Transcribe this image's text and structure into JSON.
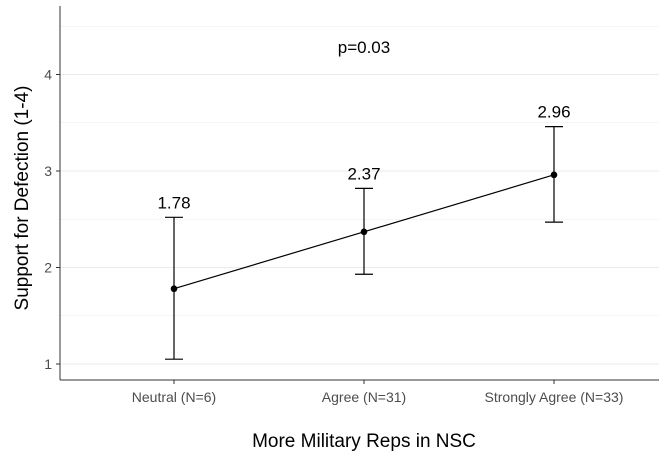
{
  "chart_data": {
    "type": "line",
    "categories": [
      "Neutral (N=6)",
      "Agree (N=31)",
      "Strongly Agree (N=33)"
    ],
    "series": [
      {
        "values": [
          1.78,
          2.37,
          2.96
        ],
        "lower": [
          1.05,
          1.93,
          2.47
        ],
        "upper": [
          2.52,
          2.82,
          3.46
        ]
      }
    ],
    "data_labels": [
      "1.78",
      "2.37",
      "2.96"
    ],
    "annotation": "p=0.03",
    "xlabel": "More Military Reps in NSC",
    "ylabel": "Support for Defection (1-4)",
    "ylim": [
      0.9,
      4.6
    ],
    "yticks": [
      1,
      2,
      3,
      4
    ],
    "ytick_labels": [
      "1",
      "2",
      "3",
      "4"
    ],
    "grid": true,
    "error_bars": true,
    "colors": {
      "line": "#000000",
      "grid": "#ebebeb",
      "axis": "#333333",
      "tick_text": "#4d4d4d",
      "background": "#ffffff"
    }
  }
}
